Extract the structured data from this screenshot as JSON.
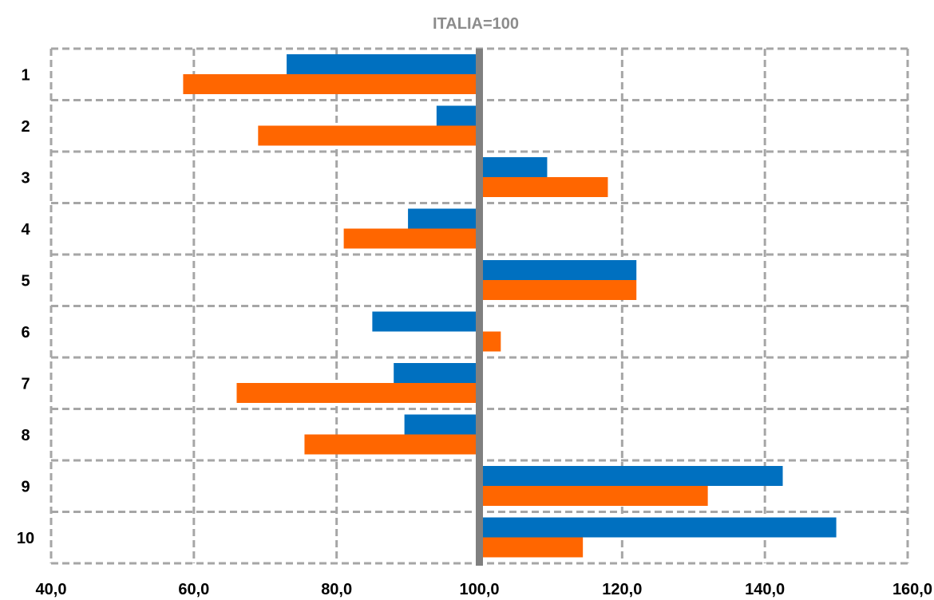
{
  "chart_data": {
    "type": "bar",
    "orientation": "horizontal",
    "title": "ITALIA=100",
    "xlabel": "",
    "ylabel": "",
    "reference_value": 100,
    "xlim": [
      40,
      160
    ],
    "x_ticks": [
      40,
      60,
      80,
      100,
      120,
      140,
      160
    ],
    "x_tick_labels": [
      "40,0",
      "60,0",
      "80,0",
      "100,0",
      "120,0",
      "140,0",
      "160,0"
    ],
    "categories": [
      "1",
      "2",
      "3",
      "4",
      "5",
      "6",
      "7",
      "8",
      "9",
      "10"
    ],
    "series": [
      {
        "color": "#0070c0",
        "values": [
          73.0,
          94.0,
          109.5,
          90.0,
          122.0,
          85.0,
          88.0,
          89.5,
          142.5,
          150.0
        ]
      },
      {
        "color": "#ff6600",
        "values": [
          58.5,
          69.0,
          118.0,
          81.0,
          122.0,
          103.0,
          66.0,
          75.5,
          132.0,
          114.5
        ]
      }
    ],
    "grid": true,
    "legend": "none"
  },
  "colors": {
    "grid": "#a6a6a6",
    "reference_line": "#808080",
    "title": "#8c8c8c"
  }
}
